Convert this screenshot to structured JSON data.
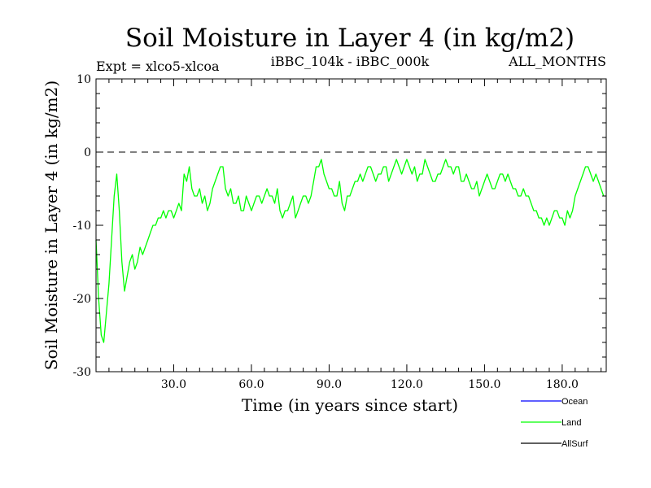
{
  "chart_data": {
    "type": "line",
    "title": "Soil Moisture in Layer 4 (in kg/m2)",
    "subtitle_left": "Expt = xlco5-xlcoa",
    "subtitle_center": "iBBC_104k - iBBC_000k",
    "subtitle_right": "ALL_MONTHS",
    "xlabel": "Time (in years since start)",
    "ylabel": "Soil Moisture in Layer 4 (in kg/m2)",
    "xlim": [
      0,
      197
    ],
    "ylim": [
      -30,
      10
    ],
    "xticks": [
      30,
      60,
      90,
      120,
      150,
      180
    ],
    "xtick_labels": [
      "30.0",
      "60.0",
      "90.0",
      "120.0",
      "150.0",
      "180.0"
    ],
    "yticks": [
      -30,
      -20,
      -10,
      0,
      10
    ],
    "ytick_labels": [
      "-30",
      "-20",
      "-10",
      "0",
      "10"
    ],
    "reference_line": 0,
    "legend": [
      {
        "name": "Ocean",
        "color": "#0000ff"
      },
      {
        "name": "Land",
        "color": "#00ff00"
      },
      {
        "name": "AllSurf",
        "color": "#000000"
      }
    ],
    "series": [
      {
        "name": "Land",
        "color": "#00ff00",
        "x_step": 1,
        "x_start": 0,
        "values": [
          -12,
          -20,
          -25,
          -26,
          -22,
          -18,
          -12,
          -6,
          -3,
          -8,
          -15,
          -19,
          -17,
          -15,
          -14,
          -16,
          -15,
          -13,
          -14,
          -13,
          -12,
          -11,
          -10,
          -10,
          -9,
          -9,
          -8,
          -9,
          -8,
          -8,
          -9,
          -8,
          -7,
          -8,
          -3,
          -4,
          -2,
          -5,
          -6,
          -6,
          -5,
          -7,
          -6,
          -8,
          -7,
          -5,
          -4,
          -3,
          -2,
          -2,
          -5,
          -6,
          -5,
          -7,
          -7,
          -6,
          -8,
          -8,
          -6,
          -7,
          -8,
          -7,
          -6,
          -6,
          -7,
          -6,
          -5,
          -6,
          -6,
          -7,
          -5,
          -8,
          -9,
          -8,
          -8,
          -7,
          -6,
          -9,
          -8,
          -7,
          -6,
          -6,
          -7,
          -6,
          -4,
          -2,
          -2,
          -1,
          -3,
          -4,
          -5,
          -5,
          -6,
          -6,
          -4,
          -7,
          -8,
          -6,
          -6,
          -5,
          -4,
          -4,
          -3,
          -4,
          -3,
          -2,
          -2,
          -3,
          -4,
          -3,
          -3,
          -2,
          -2,
          -4,
          -3,
          -2,
          -1,
          -2,
          -3,
          -2,
          -1,
          -2,
          -3,
          -2,
          -4,
          -3,
          -3,
          -1,
          -2,
          -3,
          -4,
          -4,
          -3,
          -3,
          -2,
          -1,
          -2,
          -2,
          -3,
          -2,
          -2,
          -4,
          -4,
          -3,
          -4,
          -5,
          -5,
          -4,
          -6,
          -5,
          -4,
          -3,
          -4,
          -5,
          -5,
          -4,
          -3,
          -3,
          -4,
          -3,
          -4,
          -5,
          -5,
          -6,
          -6,
          -5,
          -6,
          -6,
          -7,
          -8,
          -8,
          -9,
          -9,
          -10,
          -9,
          -10,
          -9,
          -8,
          -8,
          -9,
          -9,
          -10,
          -8,
          -9,
          -8,
          -6,
          -5,
          -4,
          -3,
          -2,
          -2,
          -3,
          -4,
          -3,
          -4,
          -5,
          -6
        ]
      }
    ]
  }
}
